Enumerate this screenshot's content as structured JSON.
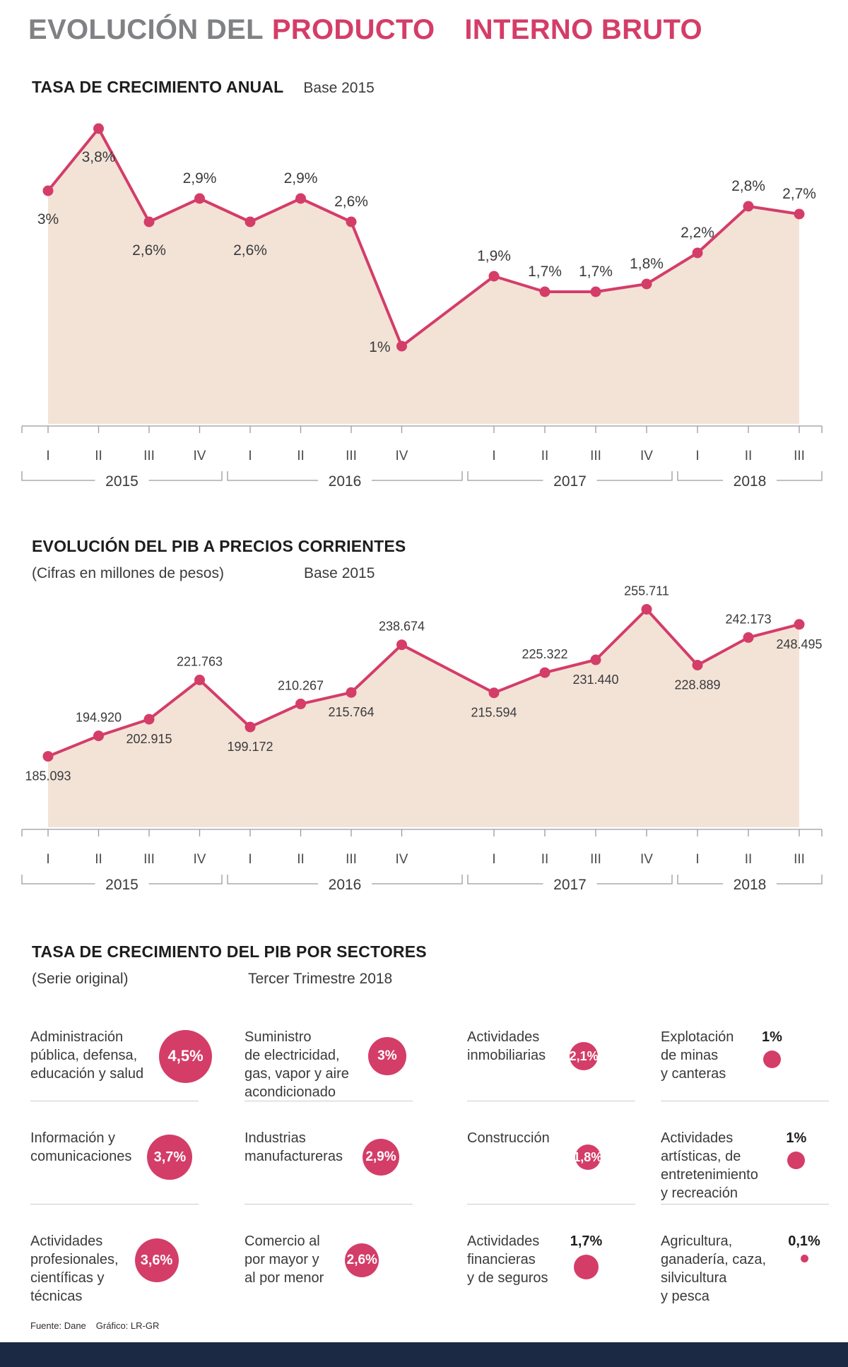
{
  "colors": {
    "accent": "#d43d68",
    "area_fill": "#f3e3d7",
    "title_gray": "#808184",
    "heading_dark": "#1d1d1f",
    "text_dark": "#3a3a3c",
    "axis_line": "#9a9a9e",
    "quarter_label": "#4b4b4e",
    "divider": "#cccccc",
    "footer_bar": "#1b2945"
  },
  "title": {
    "lead": "EVOLUCIÓN DEL",
    "accent_a": "PRODUCTO",
    "accent_b": "INTERNO BRUTO"
  },
  "axis": {
    "quarters": [
      "I",
      "II",
      "III",
      "IV",
      "I",
      "II",
      "III",
      "IV",
      "I",
      "II",
      "III",
      "IV",
      "I",
      "II",
      "III"
    ],
    "years": [
      "2015",
      "2016",
      "2017",
      "2018"
    ]
  },
  "footer": {
    "source": "Fuente: Dane",
    "credit": "Gráfico: LR-GR"
  },
  "chart_data": [
    {
      "id": "annual-growth",
      "type": "area",
      "title": "TASA DE CRECIMIENTO ANUAL",
      "subtitle": "Base 2015",
      "unit": "%",
      "x": [
        "2015 I",
        "2015 II",
        "2015 III",
        "2015 IV",
        "2016 I",
        "2016 II",
        "2016 III",
        "2016 IV",
        "2017 I",
        "2017 II",
        "2017 III",
        "2017 IV",
        "2018 I",
        "2018 II",
        "2018 III"
      ],
      "values": [
        3.0,
        3.8,
        2.6,
        2.9,
        2.6,
        2.9,
        2.6,
        1.0,
        1.9,
        1.7,
        1.7,
        1.8,
        2.2,
        2.8,
        2.7
      ],
      "point_labels": [
        "3%",
        "3,8%",
        "2,6%",
        "2,9%",
        "2,6%",
        "2,9%",
        "2,6%",
        "1%",
        "1,9%",
        "1,7%",
        "1,7%",
        "1,8%",
        "2,2%",
        "2,8%",
        "2,7%"
      ],
      "label_side": [
        "below",
        "below",
        "below",
        "above",
        "below",
        "above",
        "above",
        "left",
        "above",
        "above",
        "above",
        "above",
        "above",
        "above",
        "above"
      ],
      "ylim": [
        0,
        4.2
      ]
    },
    {
      "id": "pib-current-prices",
      "type": "area",
      "title": "EVOLUCIÓN DEL PIB A PRECIOS CORRIENTES",
      "subtitle": "(Cifras en millones de pesos)",
      "subtitle2": "Base 2015",
      "unit": "millones de pesos",
      "x": [
        "2015 I",
        "2015 II",
        "2015 III",
        "2015 IV",
        "2016 I",
        "2016 II",
        "2016 III",
        "2016 IV",
        "2017 I",
        "2017 II",
        "2017 III",
        "2017 IV",
        "2018 I",
        "2018 II",
        "2018 III"
      ],
      "values": [
        185093,
        194920,
        202915,
        221763,
        199172,
        210267,
        215764,
        238674,
        215594,
        225322,
        231440,
        255711,
        228889,
        242173,
        248495
      ],
      "point_labels": [
        "185.093",
        "194.920",
        "202.915",
        "221.763",
        "199.172",
        "210.267",
        "215.764",
        "238.674",
        "215.594",
        "225.322",
        "231.440",
        "255.711",
        "228.889",
        "242.173",
        "248.495"
      ],
      "label_side": [
        "below",
        "above",
        "below",
        "above",
        "below",
        "above",
        "below",
        "above",
        "below",
        "above",
        "below",
        "above",
        "below",
        "above",
        "below"
      ],
      "ylim": [
        151000,
        262000
      ]
    },
    {
      "id": "growth-by-sector",
      "type": "table",
      "title": "TASA DE CRECIMIENTO DEL PIB POR SECTORES",
      "subtitle": "(Serie original)",
      "subtitle2": "Tercer Trimestre 2018",
      "unit": "%",
      "items": [
        {
          "sector": "Administración\npública, defensa,\neducación y salud",
          "value": 4.5,
          "label": "4,5%",
          "label_inside": true
        },
        {
          "sector": "Suministro\nde electricidad,\ngas, vapor y aire\nacondicionado",
          "value": 3.0,
          "label": "3%",
          "label_inside": true
        },
        {
          "sector": "Actividades\ninmobiliarias",
          "value": 2.1,
          "label": "2,1%",
          "label_inside": true
        },
        {
          "sector": "Explotación\nde minas\ny canteras",
          "value": 1.0,
          "label": "1%",
          "label_inside": false
        },
        {
          "sector": "Información y\ncomunicaciones",
          "value": 3.7,
          "label": "3,7%",
          "label_inside": true
        },
        {
          "sector": "Industrias\nmanufactureras",
          "value": 2.9,
          "label": "2,9%",
          "label_inside": true
        },
        {
          "sector": "Construcción",
          "value": 1.8,
          "label": "1,8%",
          "label_inside": true
        },
        {
          "sector": "Actividades\nartísticas, de\nentretenimiento\ny recreación",
          "value": 1.0,
          "label": "1%",
          "label_inside": false
        },
        {
          "sector": "Actividades\nprofesionales,\ncientíficas y\ntécnicas",
          "value": 3.6,
          "label": "3,6%",
          "label_inside": true
        },
        {
          "sector": "Comercio al\npor mayor y\nal por menor",
          "value": 2.6,
          "label": "2,6%",
          "label_inside": true
        },
        {
          "sector": "Actividades\nfinancieras\ny de seguros",
          "value": 1.7,
          "label": "1,7%",
          "label_inside": false
        },
        {
          "sector": "Agricultura,\nganadería, caza,\nsilvicultura\ny pesca",
          "value": 0.1,
          "label": "0,1%",
          "label_inside": false
        }
      ]
    }
  ]
}
